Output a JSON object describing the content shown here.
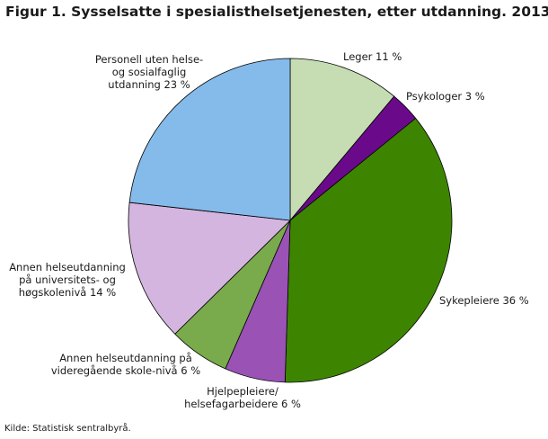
{
  "title": "Figur 1. Sysselsatte i spesialisthelsetjenesten, etter utdanning. 2013",
  "source": "Kilde: Statistisk sentralbyrå.",
  "chart_data": {
    "type": "pie",
    "title": "Figur 1. Sysselsatte i spesialisthelsetjenesten, etter utdanning. 2013",
    "unit": "%",
    "start_angle_deg": 0,
    "direction": "clockwise",
    "slices": [
      {
        "label_lines": [
          "Leger 11 %"
        ],
        "value": 11,
        "color": "#c6dcb3"
      },
      {
        "label_lines": [
          "Psykologer 3 %"
        ],
        "value": 3,
        "color": "#6a0a8a"
      },
      {
        "label_lines": [
          "Sykepleiere 36 %"
        ],
        "value": 36,
        "color": "#3d8500"
      },
      {
        "label_lines": [
          "Hjelpepleiere/",
          "helsefagarbeidere 6 %"
        ],
        "value": 6,
        "color": "#9a52b5"
      },
      {
        "label_lines": [
          "Annen helseutdanning på",
          "videregående skole-nivå 6 %"
        ],
        "value": 6,
        "color": "#79ab4c"
      },
      {
        "label_lines": [
          "Annen helseutdanning",
          "på universitets- og",
          "høgskolenivå 14 %"
        ],
        "value": 14,
        "color": "#d4b5df"
      },
      {
        "label_lines": [
          "Personell uten helse-",
          "og sosialfaglig",
          "utdanning 23 %"
        ],
        "value": 23,
        "color": "#85bbea"
      }
    ]
  }
}
